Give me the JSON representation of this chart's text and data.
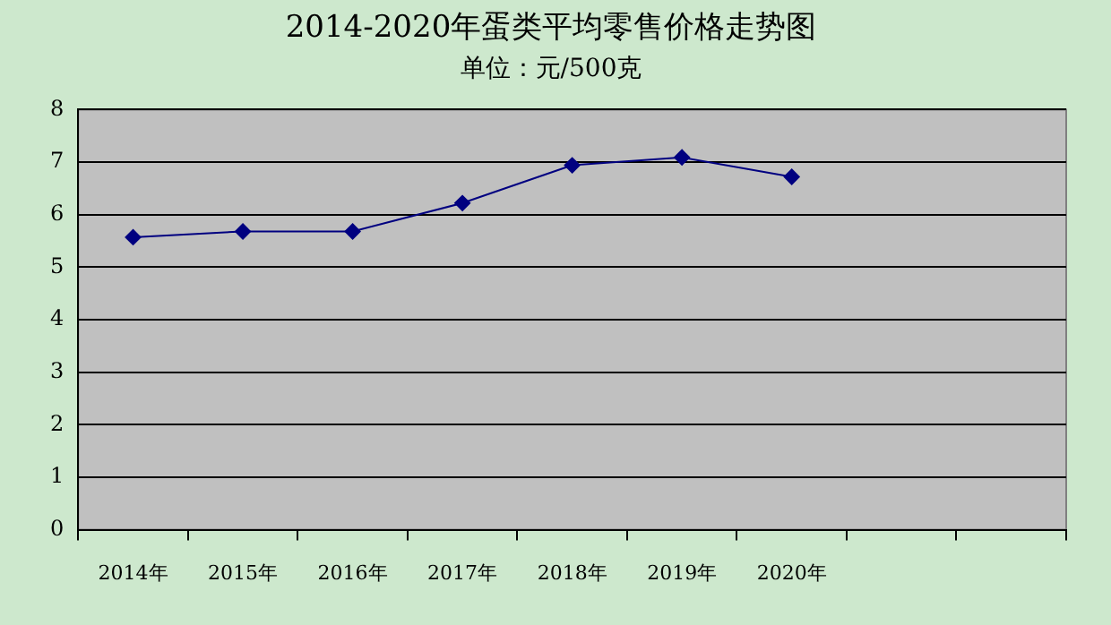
{
  "chart_data": {
    "type": "line",
    "title": "2014-2020年蛋类平均零售价格走势图",
    "subtitle": "单位：元/500克",
    "categories": [
      "2014年",
      "2015年",
      "2016年",
      "2017年",
      "2018年",
      "2019年",
      "2020年",
      null,
      null
    ],
    "values": [
      5.57,
      5.68,
      5.68,
      6.22,
      6.94,
      7.09,
      6.72,
      null,
      null
    ],
    "color": "#000080",
    "marker": "diamond",
    "ylim": [
      0,
      8
    ],
    "yticks": [
      0,
      1,
      2,
      3,
      4,
      5,
      6,
      7,
      8
    ],
    "grid": "y",
    "legend": false
  }
}
